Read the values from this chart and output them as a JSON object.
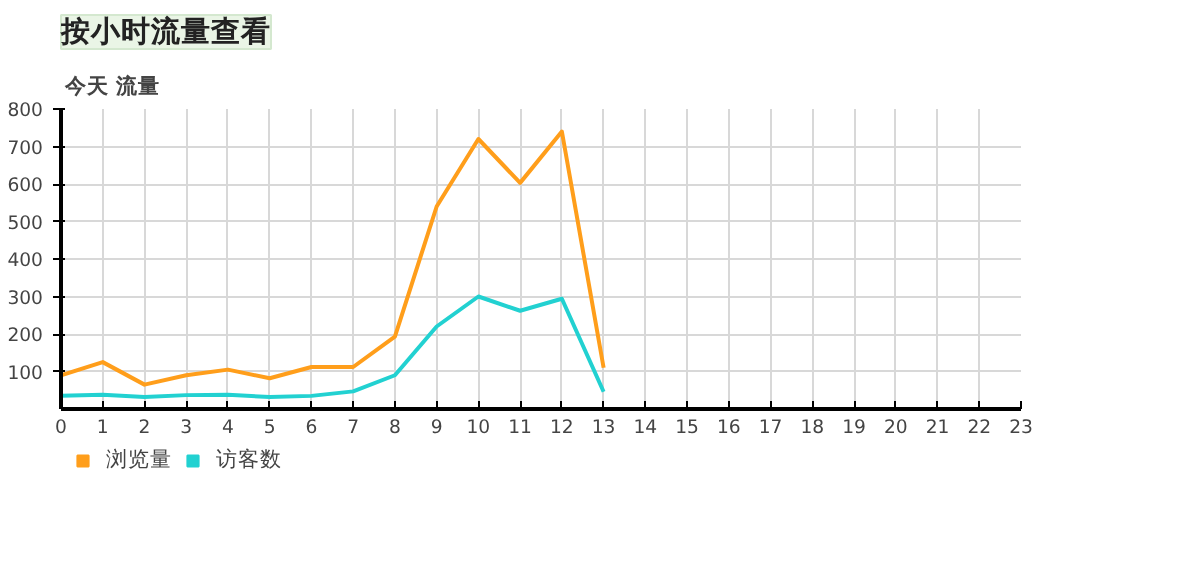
{
  "chart_data": {
    "type": "line",
    "title": "按小时流量查看",
    "subtitle": "今天  流量",
    "x": [
      0,
      1,
      2,
      3,
      4,
      5,
      6,
      7,
      8,
      9,
      10,
      11,
      12,
      13
    ],
    "series": [
      {
        "name": "浏览量",
        "color": "#ff9e1b",
        "values": [
          90,
          125,
          65,
          90,
          105,
          82,
          112,
          112,
          193,
          540,
          720,
          603,
          740,
          110
        ]
      },
      {
        "name": "访客数",
        "color": "#22d1d1",
        "values": [
          35,
          38,
          32,
          37,
          38,
          32,
          35,
          47,
          90,
          220,
          300,
          262,
          294,
          46
        ]
      }
    ],
    "xlim": [
      0,
      23
    ],
    "xticks": [
      0,
      1,
      2,
      3,
      4,
      5,
      6,
      7,
      8,
      9,
      10,
      11,
      12,
      13,
      14,
      15,
      16,
      17,
      18,
      19,
      20,
      21,
      22,
      23
    ],
    "ylim": [
      0,
      800
    ],
    "yticks": [
      100,
      200,
      300,
      400,
      500,
      600,
      700,
      800
    ],
    "grid": true,
    "legend": "bottom left",
    "marker": "none",
    "line_style": "solid"
  }
}
